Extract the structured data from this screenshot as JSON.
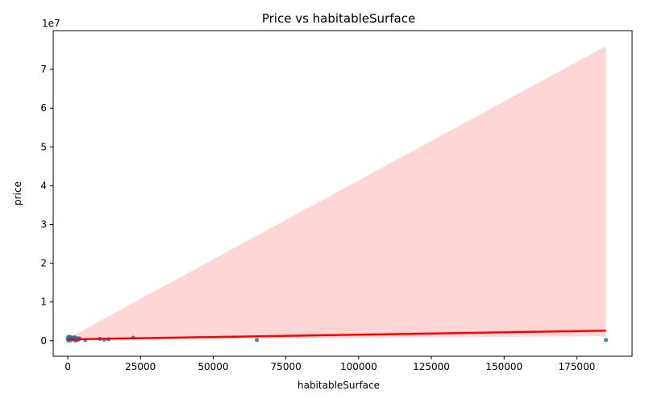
{
  "chart_data": {
    "type": "scatter",
    "title": "Price vs habitableSurface",
    "xlabel": "habitableSurface",
    "ylabel": "price",
    "y_offset_label": "1e7",
    "xlim": [
      -5000,
      194000
    ],
    "ylim": [
      -4000000,
      80000000
    ],
    "xticks": [
      0,
      25000,
      50000,
      75000,
      100000,
      125000,
      150000,
      175000
    ],
    "xtick_labels": [
      "0",
      "25000",
      "50000",
      "75000",
      "100000",
      "125000",
      "150000",
      "175000"
    ],
    "yticks": [
      0,
      10000000,
      20000000,
      30000000,
      40000000,
      50000000,
      60000000,
      70000000
    ],
    "ytick_labels": [
      "0",
      "1",
      "2",
      "3",
      "4",
      "5",
      "6",
      "7"
    ],
    "grid": false,
    "colors": {
      "points": "#1f77b4",
      "regression": "#ff0000",
      "ci_band": "#ffd6d6"
    },
    "points": {
      "x": [
        100,
        150,
        200,
        250,
        300,
        400,
        500,
        600,
        800,
        1000,
        1200,
        1500,
        1800,
        2000,
        2200,
        2500,
        2800,
        3000,
        3200,
        3500,
        3800,
        4000,
        300,
        700,
        900,
        1100,
        2600,
        3300,
        6000,
        11000,
        12500,
        14000,
        22500,
        65000,
        185000
      ],
      "y": [
        300000,
        500000,
        800000,
        1000000,
        600000,
        900000,
        400000,
        700000,
        1000000,
        850000,
        500000,
        750000,
        400000,
        650000,
        900000,
        300000,
        500000,
        700000,
        200000,
        450000,
        350000,
        600000,
        100000,
        200000,
        150000,
        250000,
        100000,
        300000,
        200000,
        500000,
        300000,
        400000,
        800000,
        200000,
        200000
      ]
    },
    "regression": {
      "x": [
        0,
        185000
      ],
      "y": [
        350000,
        2600000
      ]
    },
    "ci_band": {
      "x": [
        0,
        185000
      ],
      "upper": [
        600000,
        76000000
      ],
      "lower": [
        200000,
        1200000
      ]
    }
  }
}
